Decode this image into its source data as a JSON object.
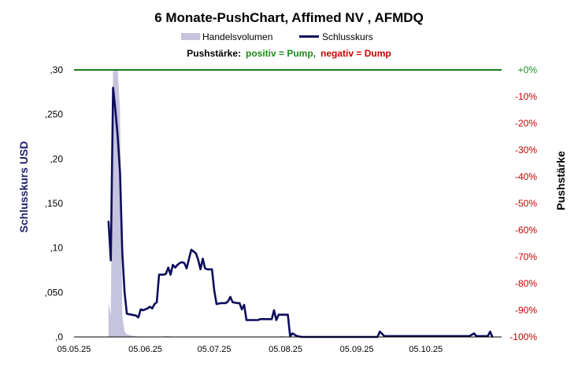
{
  "chart_data": {
    "type": "line",
    "title": "6 Monate-PushChart,  Affimed NV , AFMDQ",
    "legend": {
      "volume_label": "Handelsvolumen",
      "close_label": "Schlusskurs"
    },
    "pushstaerke": {
      "label": "Pushstärke:",
      "positive": "positiv = Pump,",
      "negative": "negativ = Dump",
      "positive_color": "#1a8a1a",
      "negative_color": "#cc0000"
    },
    "ylabel_left": "Schlusskurs USD",
    "ylabel_right": "Pushstärke",
    "y_left": {
      "range": [
        0,
        0.3
      ],
      "ticks": [
        0,
        0.05,
        0.1,
        0.15,
        0.2,
        0.25,
        0.3
      ],
      "tick_labels": [
        ",0",
        ",050",
        ",10",
        ",150",
        ",20",
        ",250",
        ",30"
      ]
    },
    "y_right": {
      "range": [
        -100,
        0
      ],
      "ticks": [
        0,
        -10,
        -20,
        -30,
        -40,
        -50,
        -60,
        -70,
        -80,
        -90,
        -100
      ],
      "tick_labels": [
        "+0%",
        "-10%",
        "-20%",
        "-30%",
        "-40%",
        "-50%",
        "-60%",
        "-70%",
        "-80%",
        "-90%",
        "-100%"
      ]
    },
    "x_axis": {
      "range": [
        "2025-05-05",
        "2025-11-07"
      ],
      "ticks": [
        "2025-05-05",
        "2025-06-05",
        "2025-07-05",
        "2025-08-05",
        "2025-09-05",
        "2025-10-05"
      ],
      "tick_labels": [
        "05.05.25",
        "05.06.25",
        "05.07.25",
        "05.08.25",
        "05.09.25",
        "05.10.25"
      ]
    },
    "pushstaerke_line": {
      "value_percent": 0,
      "color": "#1a7a1a"
    },
    "colors": {
      "close": "#0d0d5c",
      "volume": "#c5c3de"
    },
    "series": [
      {
        "name": "Schlusskurs",
        "type": "line",
        "points": [
          [
            "2025-05-20",
            0.13
          ],
          [
            "2025-05-21",
            0.086
          ],
          [
            "2025-05-22",
            0.28
          ],
          [
            "2025-05-23",
            0.255
          ],
          [
            "2025-05-24",
            0.225
          ],
          [
            "2025-05-25",
            0.185
          ],
          [
            "2025-05-26",
            0.095
          ],
          [
            "2025-05-27",
            0.05
          ],
          [
            "2025-05-28",
            0.026
          ],
          [
            "2025-05-30",
            0.025
          ],
          [
            "2025-06-01",
            0.024
          ],
          [
            "2025-06-02",
            0.022
          ],
          [
            "2025-06-03",
            0.031
          ],
          [
            "2025-06-04",
            0.03
          ],
          [
            "2025-06-06",
            0.032
          ],
          [
            "2025-06-07",
            0.034
          ],
          [
            "2025-06-08",
            0.032
          ],
          [
            "2025-06-09",
            0.037
          ],
          [
            "2025-06-10",
            0.039
          ],
          [
            "2025-06-11",
            0.07
          ],
          [
            "2025-06-12",
            0.07
          ],
          [
            "2025-06-13",
            0.07
          ],
          [
            "2025-06-14",
            0.071
          ],
          [
            "2025-06-15",
            0.078
          ],
          [
            "2025-06-16",
            0.07
          ],
          [
            "2025-06-17",
            0.081
          ],
          [
            "2025-06-18",
            0.078
          ],
          [
            "2025-06-19",
            0.081
          ],
          [
            "2025-06-20",
            0.083
          ],
          [
            "2025-06-21",
            0.084
          ],
          [
            "2025-06-22",
            0.083
          ],
          [
            "2025-06-23",
            0.077
          ],
          [
            "2025-06-25",
            0.098
          ],
          [
            "2025-06-26",
            0.096
          ],
          [
            "2025-06-27",
            0.094
          ],
          [
            "2025-06-28",
            0.087
          ],
          [
            "2025-06-29",
            0.076
          ],
          [
            "2025-06-30",
            0.088
          ],
          [
            "2025-07-01",
            0.077
          ],
          [
            "2025-07-02",
            0.076
          ],
          [
            "2025-07-04",
            0.076
          ],
          [
            "2025-07-05",
            0.052
          ],
          [
            "2025-07-06",
            0.037
          ],
          [
            "2025-07-08",
            0.038
          ],
          [
            "2025-07-10",
            0.038
          ],
          [
            "2025-07-11",
            0.04
          ],
          [
            "2025-07-12",
            0.045
          ],
          [
            "2025-07-13",
            0.039
          ],
          [
            "2025-07-15",
            0.038
          ],
          [
            "2025-07-16",
            0.038
          ],
          [
            "2025-07-17",
            0.031
          ],
          [
            "2025-07-18",
            0.036
          ],
          [
            "2025-07-19",
            0.019
          ],
          [
            "2025-07-21",
            0.019
          ],
          [
            "2025-07-24",
            0.019
          ],
          [
            "2025-07-25",
            0.02
          ],
          [
            "2025-07-30",
            0.02
          ],
          [
            "2025-07-31",
            0.03
          ],
          [
            "2025-08-01",
            0.019
          ],
          [
            "2025-08-02",
            0.025
          ],
          [
            "2025-08-06",
            0.025
          ],
          [
            "2025-08-07",
            0.001
          ],
          [
            "2025-08-08",
            0.004
          ],
          [
            "2025-08-10",
            0.001
          ],
          [
            "2025-08-12",
            0.0
          ],
          [
            "2025-09-14",
            0.0
          ],
          [
            "2025-09-15",
            0.006
          ],
          [
            "2025-09-17",
            0.001
          ],
          [
            "2025-09-25",
            0.001
          ],
          [
            "2025-10-20",
            0.001
          ],
          [
            "2025-10-24",
            0.001
          ],
          [
            "2025-10-26",
            0.004
          ],
          [
            "2025-10-27",
            0.001
          ],
          [
            "2025-11-01",
            0.001
          ],
          [
            "2025-11-02",
            0.006
          ],
          [
            "2025-11-03",
            0.0
          ]
        ]
      },
      {
        "name": "Handelsvolumen",
        "type": "area",
        "axis": "relative",
        "points": [
          [
            "2025-05-20",
            0.13
          ],
          [
            "2025-05-21",
            0.08
          ],
          [
            "2025-05-22",
            1.0
          ],
          [
            "2025-05-23",
            1.0
          ],
          [
            "2025-05-24",
            1.0
          ],
          [
            "2025-05-25",
            0.85
          ],
          [
            "2025-05-26",
            0.08
          ],
          [
            "2025-05-27",
            0.02
          ],
          [
            "2025-05-28",
            0.01
          ],
          [
            "2025-05-30",
            0.005
          ],
          [
            "2025-06-01",
            0.002
          ],
          [
            "2025-06-10",
            0.0
          ],
          [
            "2025-06-15",
            0.003
          ],
          [
            "2025-06-18",
            0.0
          ],
          [
            "2025-08-02",
            0.0
          ],
          [
            "2025-08-03",
            0.004
          ],
          [
            "2025-08-05",
            0.0
          ],
          [
            "2025-11-03",
            0.0
          ]
        ]
      }
    ]
  }
}
